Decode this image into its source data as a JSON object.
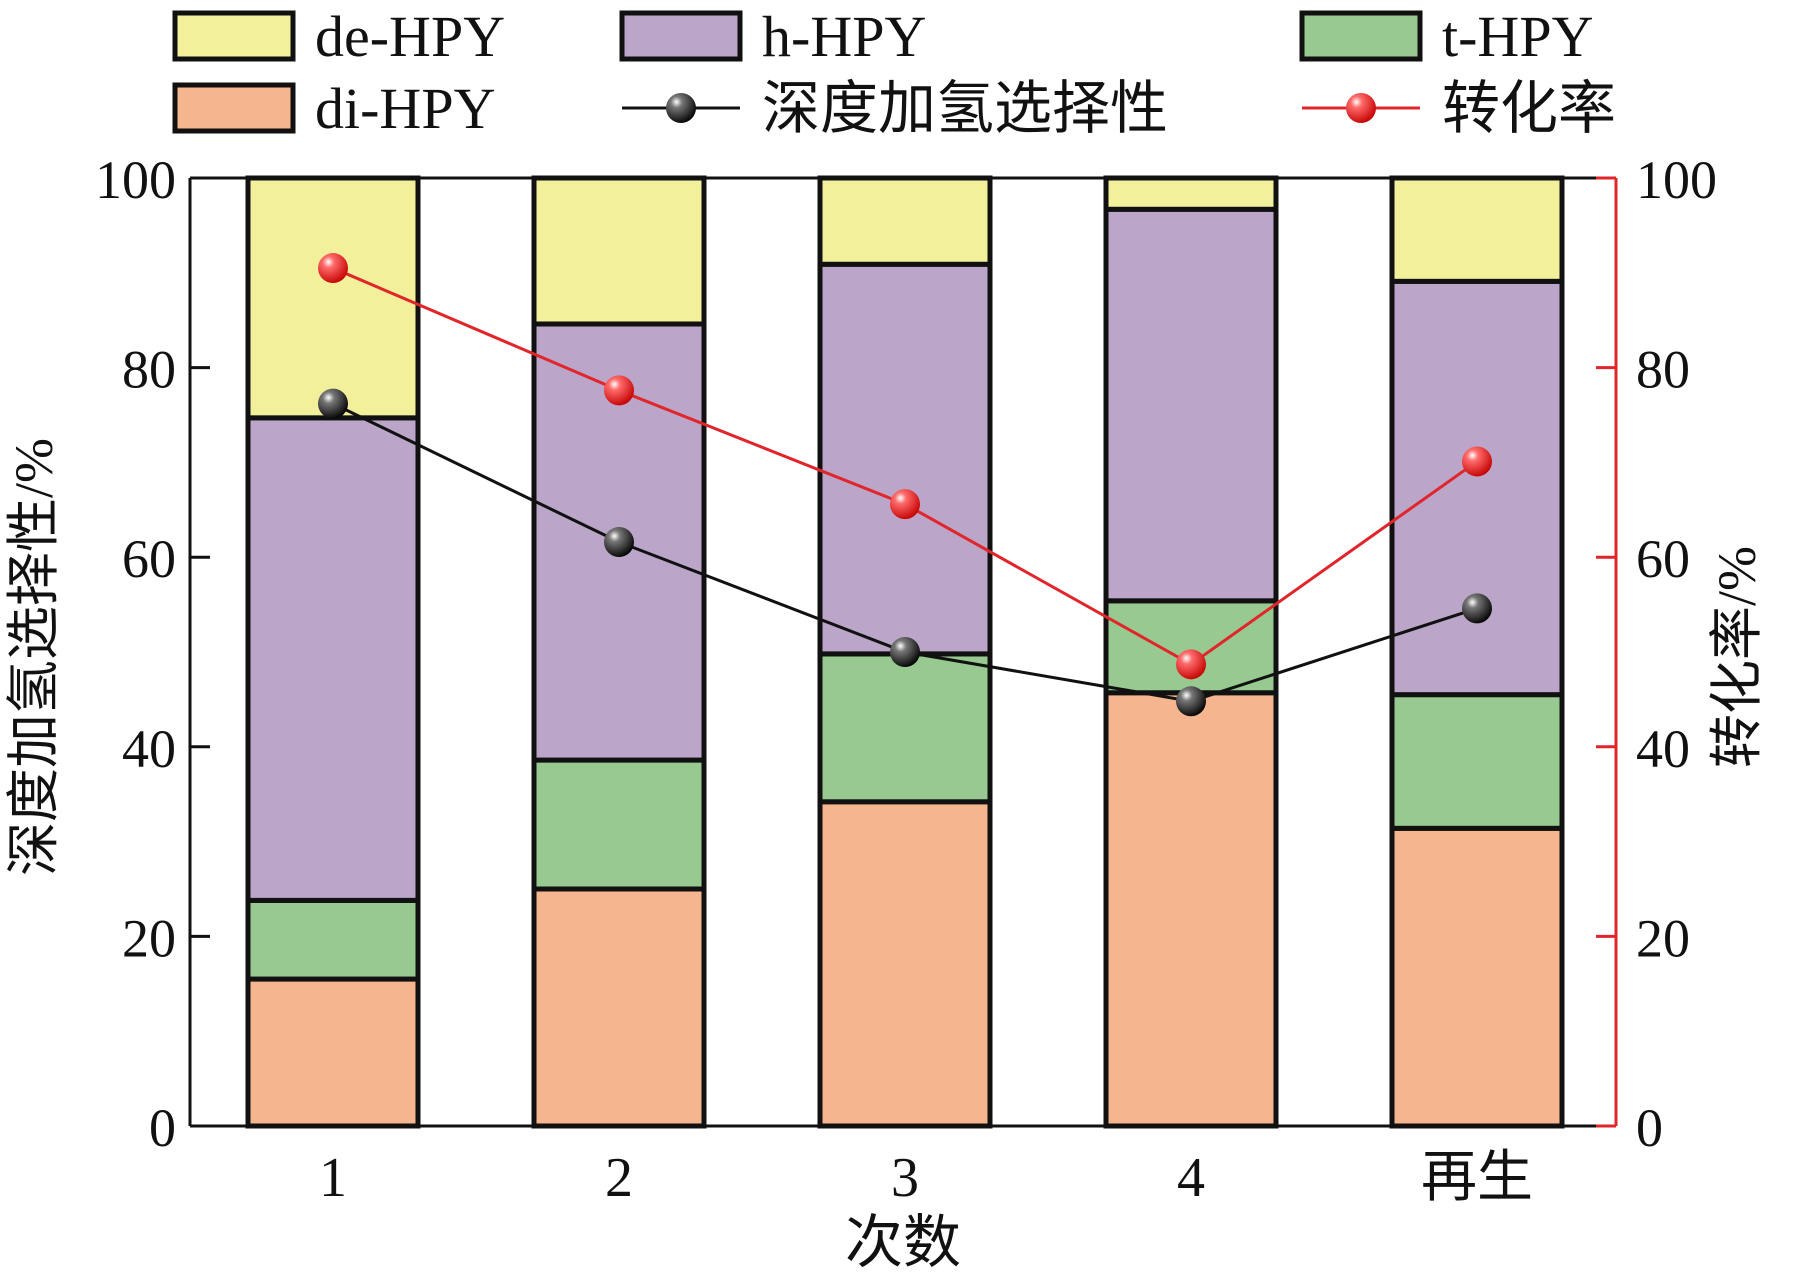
{
  "chart_data": {
    "type": "bar",
    "stacked": true,
    "categories": [
      "1",
      "2",
      "3",
      "4",
      "再生"
    ],
    "xlabel": "次数",
    "ylabel_left": "深度加氢选择性/%",
    "ylabel_right": "转化率/%",
    "ylim_left": [
      0,
      100
    ],
    "ylim_right": [
      0,
      100
    ],
    "yticks": [
      "0",
      "20",
      "40",
      "60",
      "80",
      "100"
    ],
    "legend_placement": "top",
    "series": [
      {
        "name": "di-HPY",
        "color": "#f5b58e",
        "values": [
          15.5,
          25.0,
          34.2,
          45.7,
          31.4
        ]
      },
      {
        "name": "t-HPY",
        "color": "#97c991",
        "values": [
          8.3,
          13.6,
          15.6,
          9.7,
          14.1
        ]
      },
      {
        "name": "h-HPY",
        "color": "#bba5c8",
        "values": [
          50.9,
          46.0,
          41.1,
          41.3,
          43.6
        ]
      },
      {
        "name": "de-HPY",
        "color": "#f2f09a",
        "values": [
          25.3,
          15.4,
          9.1,
          3.3,
          10.9
        ]
      }
    ],
    "lines": [
      {
        "name": "深度加氢选择性",
        "axis": "left",
        "color": "#111111",
        "values": [
          76.2,
          61.6,
          50.0,
          44.8,
          54.6
        ]
      },
      {
        "name": "转化率",
        "axis": "right",
        "color": "#e0262b",
        "values": [
          90.5,
          77.6,
          65.6,
          48.7,
          70.1
        ]
      }
    ],
    "legend_order": [
      "de-HPY",
      "h-HPY",
      "t-HPY",
      "di-HPY",
      "深度加氢选择性",
      "转化率"
    ]
  }
}
